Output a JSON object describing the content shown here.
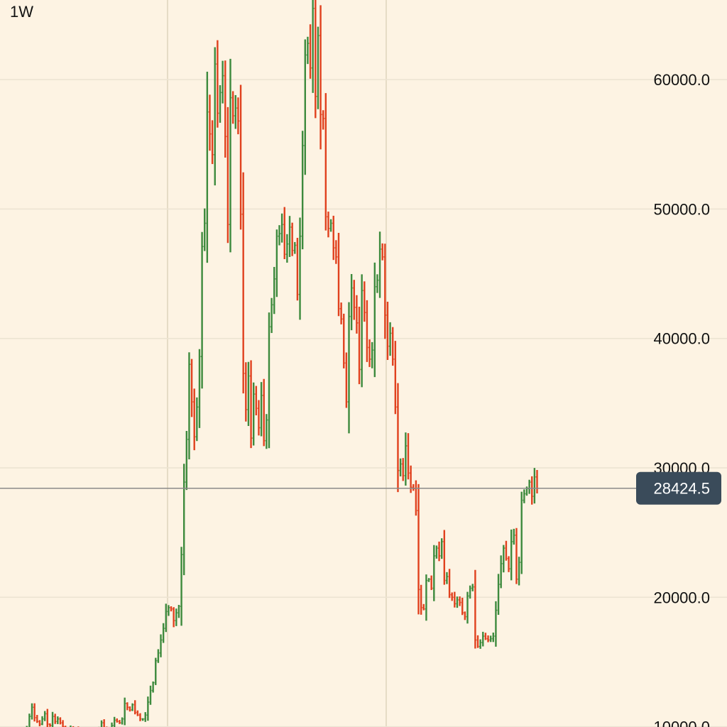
{
  "interval": "1W",
  "chart_data": {
    "type": "ohlc",
    "timeframe": "1W",
    "ylim": [
      9800,
      66500
    ],
    "y_ticks": [
      10000,
      20000,
      30000,
      40000,
      50000,
      60000
    ],
    "y_tick_labels": [
      "10000.0",
      "20000.0",
      "30000.0",
      "40000.0",
      "50000.0",
      "60000.0"
    ],
    "last_price": 28424.5,
    "last_price_label": "28424.5",
    "grid": true,
    "colors": {
      "up": "#3d8a3d",
      "down": "#e0411e",
      "background": "#fdf3e3",
      "badge": "#3a4b5a",
      "price_line": "#8a8a8a",
      "grid": "#ece3d2"
    },
    "close_values": [
      9600,
      9700,
      9900,
      10800,
      11500,
      10700,
      10400,
      10200,
      10600,
      11000,
      10200,
      10100,
      10800,
      10400,
      10600,
      10300,
      10000,
      9800,
      9700,
      9900,
      9800,
      9900,
      9800,
      9700,
      9600,
      9700,
      9500,
      9400,
      9700,
      9800,
      9900,
      10300,
      9800,
      9500,
      9400,
      10100,
      10500,
      10400,
      10300,
      10600,
      11800,
      11500,
      11300,
      11700,
      11100,
      10900,
      10600,
      10600,
      10900,
      11900,
      12800,
      13400,
      15100,
      15700,
      16700,
      17600,
      18900,
      19200,
      19100,
      18200,
      18800,
      19300,
      23300,
      28900,
      32200,
      38000,
      35100,
      32400,
      34700,
      38600,
      47100,
      48900,
      57500,
      55800,
      54200,
      61200,
      57400,
      59000,
      60300,
      55600,
      48800,
      58600,
      57200,
      57800,
      56800,
      49600,
      37300,
      34500,
      37100,
      32300,
      35700,
      34600,
      33100,
      35600,
      32100,
      33700,
      40900,
      42600,
      44600,
      47900,
      48100,
      48800,
      46500,
      47300,
      48600,
      46800,
      47200,
      43400,
      47900,
      54900,
      61900,
      62800,
      60900,
      65500,
      58700,
      63400,
      57300,
      57000,
      49400,
      48500,
      48900,
      47000,
      46300,
      42300,
      41500,
      38100,
      35100,
      41700,
      43900,
      42400,
      41200,
      37600,
      43700,
      42000,
      39300,
      38400,
      39100,
      44000,
      44500,
      46900,
      46300,
      41800,
      39400,
      40400,
      38400,
      34700,
      29800,
      30300,
      29400,
      31700,
      29600,
      28500,
      28400,
      26700,
      20600,
      19200,
      19100,
      21300,
      21400,
      20700,
      23200,
      23800,
      23200,
      24300,
      21300,
      21600,
      20200,
      20000,
      19500,
      19800,
      19600,
      18800,
      18500,
      20100,
      20700,
      20800,
      16700,
      16200,
      16500,
      17000,
      16800,
      16700,
      16800,
      17000,
      19000,
      21000,
      22600,
      23800,
      23000,
      22200,
      24300,
      24800,
      21400,
      22700,
      27500,
      28000,
      28400,
      28900,
      27800,
      29300,
      28400
    ]
  }
}
